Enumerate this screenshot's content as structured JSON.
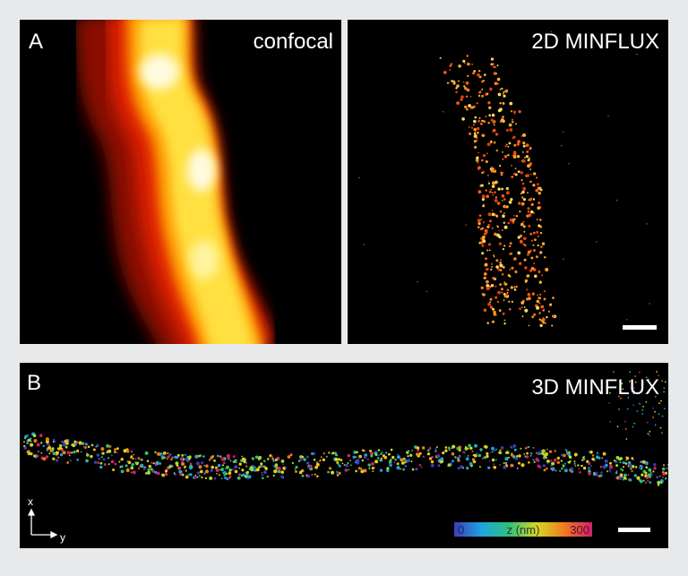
{
  "panel_a": {
    "label": "A",
    "left_title": "confocal",
    "right_title": "2D MINFLUX"
  },
  "panel_b": {
    "label": "B",
    "title": "3D MINFLUX",
    "axis_x": "x",
    "axis_y": "y",
    "colorbar": {
      "min": "0",
      "name": "z (nm)",
      "max": "300"
    }
  }
}
